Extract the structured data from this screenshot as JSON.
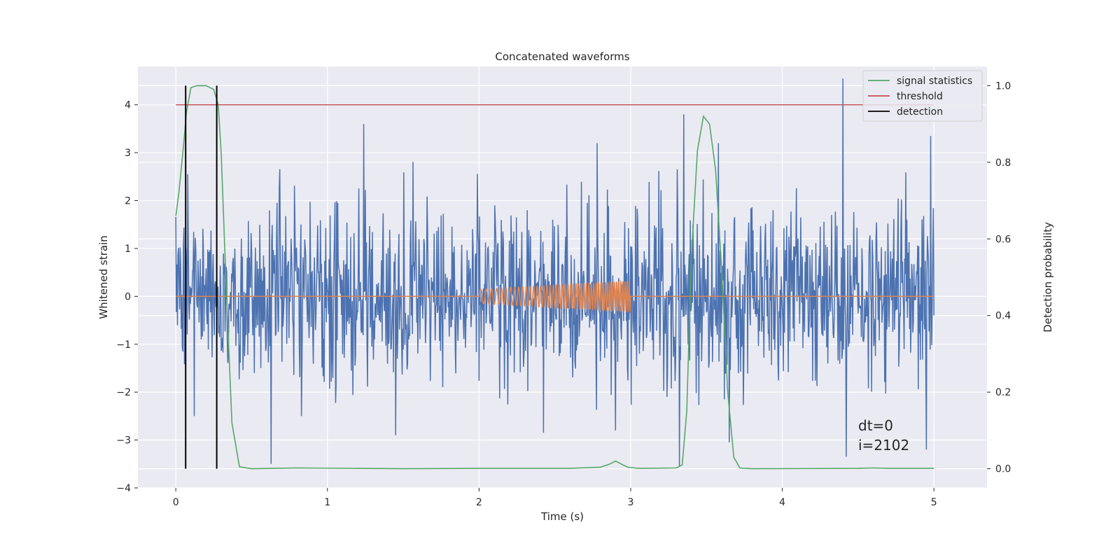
{
  "chart_data": {
    "type": "line",
    "title": "Concatenated waveforms",
    "xlabel": "Time (s)",
    "ylabel_left": "Whitened strain",
    "ylabel_right": "Detection probability",
    "xlim": [
      -0.25,
      5.35
    ],
    "ylim_left": [
      -4,
      4.8
    ],
    "ylim_right": [
      -0.05,
      1.05
    ],
    "x_ticks": [
      0,
      1,
      2,
      3,
      4,
      5
    ],
    "y_left_ticks": [
      -4,
      -3,
      -2,
      -1,
      0,
      1,
      2,
      3,
      4
    ],
    "y_right_ticks": [
      0.0,
      0.2,
      0.4,
      0.6,
      0.8,
      1.0
    ],
    "y_right_tick_labels": [
      "0.0",
      "0.2",
      "0.4",
      "0.6",
      "0.8",
      "1.0"
    ],
    "grid": true,
    "legend_position": "top-right",
    "legend": [
      {
        "label": "signal statistics",
        "color": "#55a868"
      },
      {
        "label": "threshold",
        "color": "#c44e52"
      },
      {
        "label": "detection",
        "color": "#000000"
      }
    ],
    "series": [
      {
        "role": "whitened-strain",
        "axis": "left",
        "color": "#4c72b0",
        "x_range": [
          0,
          5
        ],
        "typical_amplitude": 1.5,
        "peaks": [
          {
            "x": 0.08,
            "y": 2.55
          },
          {
            "x": 0.12,
            "y": -2.5
          },
          {
            "x": 0.63,
            "y": -3.5
          },
          {
            "x": 0.83,
            "y": -2.5
          },
          {
            "x": 1.24,
            "y": 3.6
          },
          {
            "x": 1.45,
            "y": -2.9
          },
          {
            "x": 2.78,
            "y": 3.2
          },
          {
            "x": 2.9,
            "y": -2.8
          },
          {
            "x": 3.32,
            "y": -3.55
          },
          {
            "x": 3.35,
            "y": 3.8
          },
          {
            "x": 3.58,
            "y": 3.2
          },
          {
            "x": 3.65,
            "y": -3.05
          },
          {
            "x": 4.4,
            "y": 4.55
          },
          {
            "x": 4.42,
            "y": -3.35
          },
          {
            "x": 4.95,
            "y": -3.2
          },
          {
            "x": 4.98,
            "y": 3.35
          }
        ]
      },
      {
        "role": "injected-chirp",
        "axis": "left",
        "color": "#dd8452",
        "x_range": [
          0,
          5
        ],
        "chirp_start": 2.0,
        "chirp_end": 3.0,
        "amplitude_start": 0.15,
        "amplitude_end": 0.32,
        "frequency_start_hz": 25,
        "frequency_end_hz": 75
      },
      {
        "name": "signal statistics",
        "axis": "right",
        "color": "#55a868",
        "x": [
          0.0,
          0.02,
          0.05,
          0.07,
          0.1,
          0.14,
          0.2,
          0.25,
          0.28,
          0.3,
          0.33,
          0.37,
          0.42,
          0.5,
          0.8,
          1.5,
          2.0,
          2.6,
          2.8,
          2.86,
          2.9,
          2.94,
          2.98,
          3.05,
          3.3,
          3.34,
          3.37,
          3.4,
          3.44,
          3.48,
          3.52,
          3.56,
          3.6,
          3.64,
          3.68,
          3.72,
          3.8,
          4.5,
          4.6,
          4.7,
          5.0
        ],
        "y": [
          0.66,
          0.72,
          0.84,
          0.93,
          0.995,
          1.0,
          1.0,
          0.99,
          0.95,
          0.82,
          0.5,
          0.12,
          0.005,
          0.0,
          0.002,
          0.0,
          0.001,
          0.001,
          0.004,
          0.012,
          0.02,
          0.012,
          0.004,
          0.001,
          0.002,
          0.01,
          0.15,
          0.55,
          0.83,
          0.92,
          0.9,
          0.78,
          0.52,
          0.2,
          0.03,
          0.002,
          0.0,
          0.001,
          0.002,
          0.001,
          0.001
        ]
      },
      {
        "name": "threshold",
        "axis": "right",
        "color": "#c44e52",
        "x": [
          0,
          5
        ],
        "y": [
          0.95,
          0.95
        ]
      }
    ],
    "detections": {
      "color": "#000000",
      "x": [
        0.065,
        0.27
      ],
      "y_range_right": [
        0.0,
        1.0
      ]
    },
    "annotation": [
      "dt=0",
      "i=2102"
    ]
  }
}
